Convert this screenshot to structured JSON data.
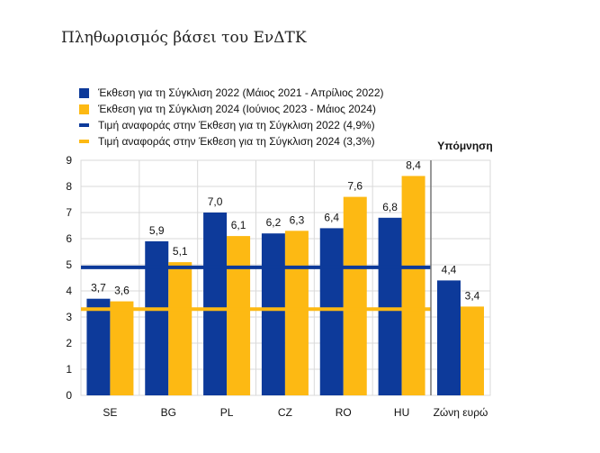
{
  "chart_data": {
    "type": "bar",
    "title": "Πληθωρισμός βάσει του ΕνΔΤΚ",
    "categories": [
      "SE",
      "BG",
      "PL",
      "CZ",
      "RO",
      "HU"
    ],
    "memo": {
      "header": "Υπόμνηση",
      "category": "Ζώνη  ευρώ",
      "values": [
        4.4,
        3.4
      ]
    },
    "series": [
      {
        "name": "Έκθεση για τη Σύγκλιση 2022 (Μάιος 2021 - Απρίλιος 2022)",
        "color": "#0d3a9a",
        "values": [
          3.7,
          5.9,
          7.0,
          6.2,
          6.4,
          6.8
        ]
      },
      {
        "name": "Έκθεση για τη Σύγκλιση 2024 (Ιούνιος 2023 - Μάιος 2024)",
        "color": "#fdb913",
        "values": [
          3.6,
          5.1,
          6.1,
          6.3,
          7.6,
          8.4
        ]
      }
    ],
    "reference_lines": [
      {
        "name": "Τιμή αναφοράς στην Έκθεση για τη Σύγκλιση 2022 (4,9%)",
        "value": 4.9,
        "color": "#0d3a9a"
      },
      {
        "name": "Τιμή αναφοράς στην Έκθεση για τη Σύγκλιση 2024 (3,3%)",
        "value": 3.3,
        "color": "#fdb913"
      }
    ],
    "ylim": [
      0,
      9
    ],
    "yticks": [
      0,
      1,
      2,
      3,
      4,
      5,
      6,
      7,
      8,
      9
    ],
    "decimal_separator": ",",
    "grid": true,
    "legend_position": "top-left"
  }
}
